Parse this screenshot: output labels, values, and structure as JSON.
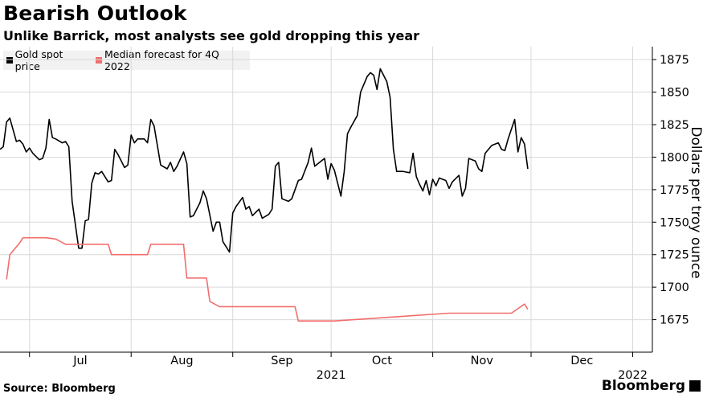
{
  "title": "Bearish Outlook",
  "subtitle": "Unlike Barrick, most analysts see gold dropping this year",
  "source": "Source: Bloomberg",
  "logo_text": "Bloomberg",
  "legend": [
    {
      "label": "Gold spot price",
      "color": "#000000"
    },
    {
      "label": "Median forecast for 4Q 2022",
      "color": "#f26d6d"
    }
  ],
  "chart_data": {
    "type": "line",
    "title": "Bearish Outlook",
    "subtitle": "Unlike Barrick, most analysts see gold dropping this year",
    "ylabel": "Dollars per troy ounce",
    "ylim": [
      1650,
      1885
    ],
    "yticks": [
      1675,
      1700,
      1725,
      1750,
      1775,
      1800,
      1825,
      1850,
      1875
    ],
    "xlim": [
      "2021-06-22",
      "2022-01-07"
    ],
    "xticks": [
      {
        "label": "Jul",
        "date": "2021-07-01"
      },
      {
        "label": "Aug",
        "date": "2021-08-01"
      },
      {
        "label": "Sep",
        "date": "2021-09-01"
      },
      {
        "label": "Oct",
        "date": "2021-10-01"
      },
      {
        "label": "Nov",
        "date": "2021-11-01"
      },
      {
        "label": "Dec",
        "date": "2021-12-01"
      },
      {
        "label": "2022",
        "date": "2022-01-01"
      }
    ],
    "year_label": "2021",
    "grid": true,
    "legend_position": "top-left",
    "series": [
      {
        "name": "Gold spot price",
        "color": "#000000",
        "points": [
          [
            "2021-06-22",
            1806
          ],
          [
            "2021-06-23",
            1808
          ],
          [
            "2021-06-24",
            1827
          ],
          [
            "2021-06-25",
            1830
          ],
          [
            "2021-06-27",
            1812
          ],
          [
            "2021-06-28",
            1813
          ],
          [
            "2021-06-29",
            1810
          ],
          [
            "2021-06-30",
            1804
          ],
          [
            "2021-07-01",
            1807
          ],
          [
            "2021-07-02",
            1803
          ],
          [
            "2021-07-04",
            1798
          ],
          [
            "2021-07-05",
            1799
          ],
          [
            "2021-07-06",
            1807
          ],
          [
            "2021-07-07",
            1829
          ],
          [
            "2021-07-08",
            1815
          ],
          [
            "2021-07-09",
            1814
          ],
          [
            "2021-07-11",
            1811
          ],
          [
            "2021-07-12",
            1812
          ],
          [
            "2021-07-13",
            1808
          ],
          [
            "2021-07-14",
            1766
          ],
          [
            "2021-07-15",
            1748
          ],
          [
            "2021-07-16",
            1730
          ],
          [
            "2021-07-17",
            1730
          ],
          [
            "2021-07-18",
            1751
          ],
          [
            "2021-07-19",
            1752
          ],
          [
            "2021-07-20",
            1780
          ],
          [
            "2021-07-21",
            1788
          ],
          [
            "2021-07-22",
            1787
          ],
          [
            "2021-07-23",
            1789
          ],
          [
            "2021-07-25",
            1781
          ],
          [
            "2021-07-26",
            1782
          ],
          [
            "2021-07-27",
            1806
          ],
          [
            "2021-07-28",
            1802
          ],
          [
            "2021-07-30",
            1792
          ],
          [
            "2021-07-31",
            1794
          ],
          [
            "2021-08-01",
            1817
          ],
          [
            "2021-08-02",
            1811
          ],
          [
            "2021-08-03",
            1814
          ],
          [
            "2021-08-05",
            1814
          ],
          [
            "2021-08-06",
            1811
          ],
          [
            "2021-08-07",
            1829
          ],
          [
            "2021-08-08",
            1824
          ],
          [
            "2021-08-10",
            1794
          ],
          [
            "2021-08-12",
            1791
          ],
          [
            "2021-08-13",
            1796
          ],
          [
            "2021-08-14",
            1789
          ],
          [
            "2021-08-15",
            1793
          ],
          [
            "2021-08-17",
            1804
          ],
          [
            "2021-08-18",
            1795
          ],
          [
            "2021-08-19",
            1754
          ],
          [
            "2021-08-20",
            1755
          ],
          [
            "2021-08-22",
            1765
          ],
          [
            "2021-08-23",
            1774
          ],
          [
            "2021-08-24",
            1768
          ],
          [
            "2021-08-26",
            1743
          ],
          [
            "2021-08-27",
            1750
          ],
          [
            "2021-08-28",
            1750
          ],
          [
            "2021-08-29",
            1735
          ],
          [
            "2021-08-31",
            1727
          ],
          [
            "2021-09-01",
            1757
          ],
          [
            "2021-09-02",
            1762
          ],
          [
            "2021-09-04",
            1769
          ],
          [
            "2021-09-05",
            1760
          ],
          [
            "2021-09-06",
            1762
          ],
          [
            "2021-09-07",
            1755
          ],
          [
            "2021-09-09",
            1760
          ],
          [
            "2021-09-10",
            1753
          ],
          [
            "2021-09-12",
            1756
          ],
          [
            "2021-09-13",
            1760
          ],
          [
            "2021-09-14",
            1793
          ],
          [
            "2021-09-15",
            1796
          ],
          [
            "2021-09-16",
            1768
          ],
          [
            "2021-09-18",
            1766
          ],
          [
            "2021-09-19",
            1768
          ],
          [
            "2021-09-21",
            1782
          ],
          [
            "2021-09-22",
            1783
          ],
          [
            "2021-09-24",
            1796
          ],
          [
            "2021-09-25",
            1807
          ],
          [
            "2021-09-26",
            1793
          ],
          [
            "2021-09-28",
            1797
          ],
          [
            "2021-09-29",
            1799
          ],
          [
            "2021-09-30",
            1783
          ],
          [
            "2021-10-01",
            1795
          ],
          [
            "2021-10-02",
            1790
          ],
          [
            "2021-10-04",
            1770
          ],
          [
            "2021-10-05",
            1789
          ],
          [
            "2021-10-06",
            1818
          ],
          [
            "2021-10-07",
            1823
          ],
          [
            "2021-10-09",
            1832
          ],
          [
            "2021-10-10",
            1850
          ],
          [
            "2021-10-12",
            1862
          ],
          [
            "2021-10-13",
            1865
          ],
          [
            "2021-10-14",
            1863
          ],
          [
            "2021-10-15",
            1852
          ],
          [
            "2021-10-16",
            1868
          ],
          [
            "2021-10-18",
            1858
          ],
          [
            "2021-10-19",
            1846
          ],
          [
            "2021-10-20",
            1806
          ],
          [
            "2021-10-21",
            1789
          ],
          [
            "2021-10-22",
            1789
          ],
          [
            "2021-10-23",
            1789
          ],
          [
            "2021-10-25",
            1788
          ],
          [
            "2021-10-26",
            1803
          ],
          [
            "2021-10-27",
            1785
          ],
          [
            "2021-10-28",
            1779
          ],
          [
            "2021-10-29",
            1774
          ],
          [
            "2021-10-30",
            1782
          ],
          [
            "2021-10-31",
            1771
          ],
          [
            "2021-11-01",
            1783
          ],
          [
            "2021-11-02",
            1778
          ],
          [
            "2021-11-03",
            1784
          ],
          [
            "2021-11-05",
            1782
          ],
          [
            "2021-11-06",
            1776
          ],
          [
            "2021-11-07",
            1781
          ],
          [
            "2021-11-09",
            1786
          ],
          [
            "2021-11-10",
            1770
          ],
          [
            "2021-11-11",
            1776
          ],
          [
            "2021-11-12",
            1799
          ],
          [
            "2021-11-14",
            1797
          ],
          [
            "2021-11-15",
            1791
          ],
          [
            "2021-11-16",
            1789
          ],
          [
            "2021-11-17",
            1803
          ],
          [
            "2021-11-19",
            1809
          ],
          [
            "2021-11-21",
            1811
          ],
          [
            "2021-11-22",
            1806
          ],
          [
            "2021-11-23",
            1805
          ],
          [
            "2021-11-24",
            1814
          ],
          [
            "2021-11-26",
            1829
          ],
          [
            "2021-11-27",
            1804
          ],
          [
            "2021-11-28",
            1815
          ],
          [
            "2021-11-29",
            1810
          ],
          [
            "2021-11-30",
            1791
          ]
        ]
      },
      {
        "name": "Median forecast for 4Q 2022",
        "color": "#f26d6d",
        "points": [
          [
            "2021-06-24",
            1706
          ],
          [
            "2021-06-25",
            1725
          ],
          [
            "2021-06-28",
            1734
          ],
          [
            "2021-06-29",
            1738
          ],
          [
            "2021-07-03",
            1738
          ],
          [
            "2021-07-06",
            1738
          ],
          [
            "2021-07-09",
            1737
          ],
          [
            "2021-07-12",
            1733
          ],
          [
            "2021-07-25",
            1733
          ],
          [
            "2021-07-26",
            1725
          ],
          [
            "2021-08-06",
            1725
          ],
          [
            "2021-08-07",
            1733
          ],
          [
            "2021-08-17",
            1733
          ],
          [
            "2021-08-18",
            1707
          ],
          [
            "2021-08-24",
            1707
          ],
          [
            "2021-08-25",
            1689
          ],
          [
            "2021-08-28",
            1685
          ],
          [
            "2021-09-20",
            1685
          ],
          [
            "2021-09-21",
            1674
          ],
          [
            "2021-10-02",
            1674
          ],
          [
            "2021-11-06",
            1680
          ],
          [
            "2021-11-25",
            1680
          ],
          [
            "2021-11-29",
            1687
          ],
          [
            "2021-11-30",
            1683
          ]
        ]
      }
    ]
  }
}
